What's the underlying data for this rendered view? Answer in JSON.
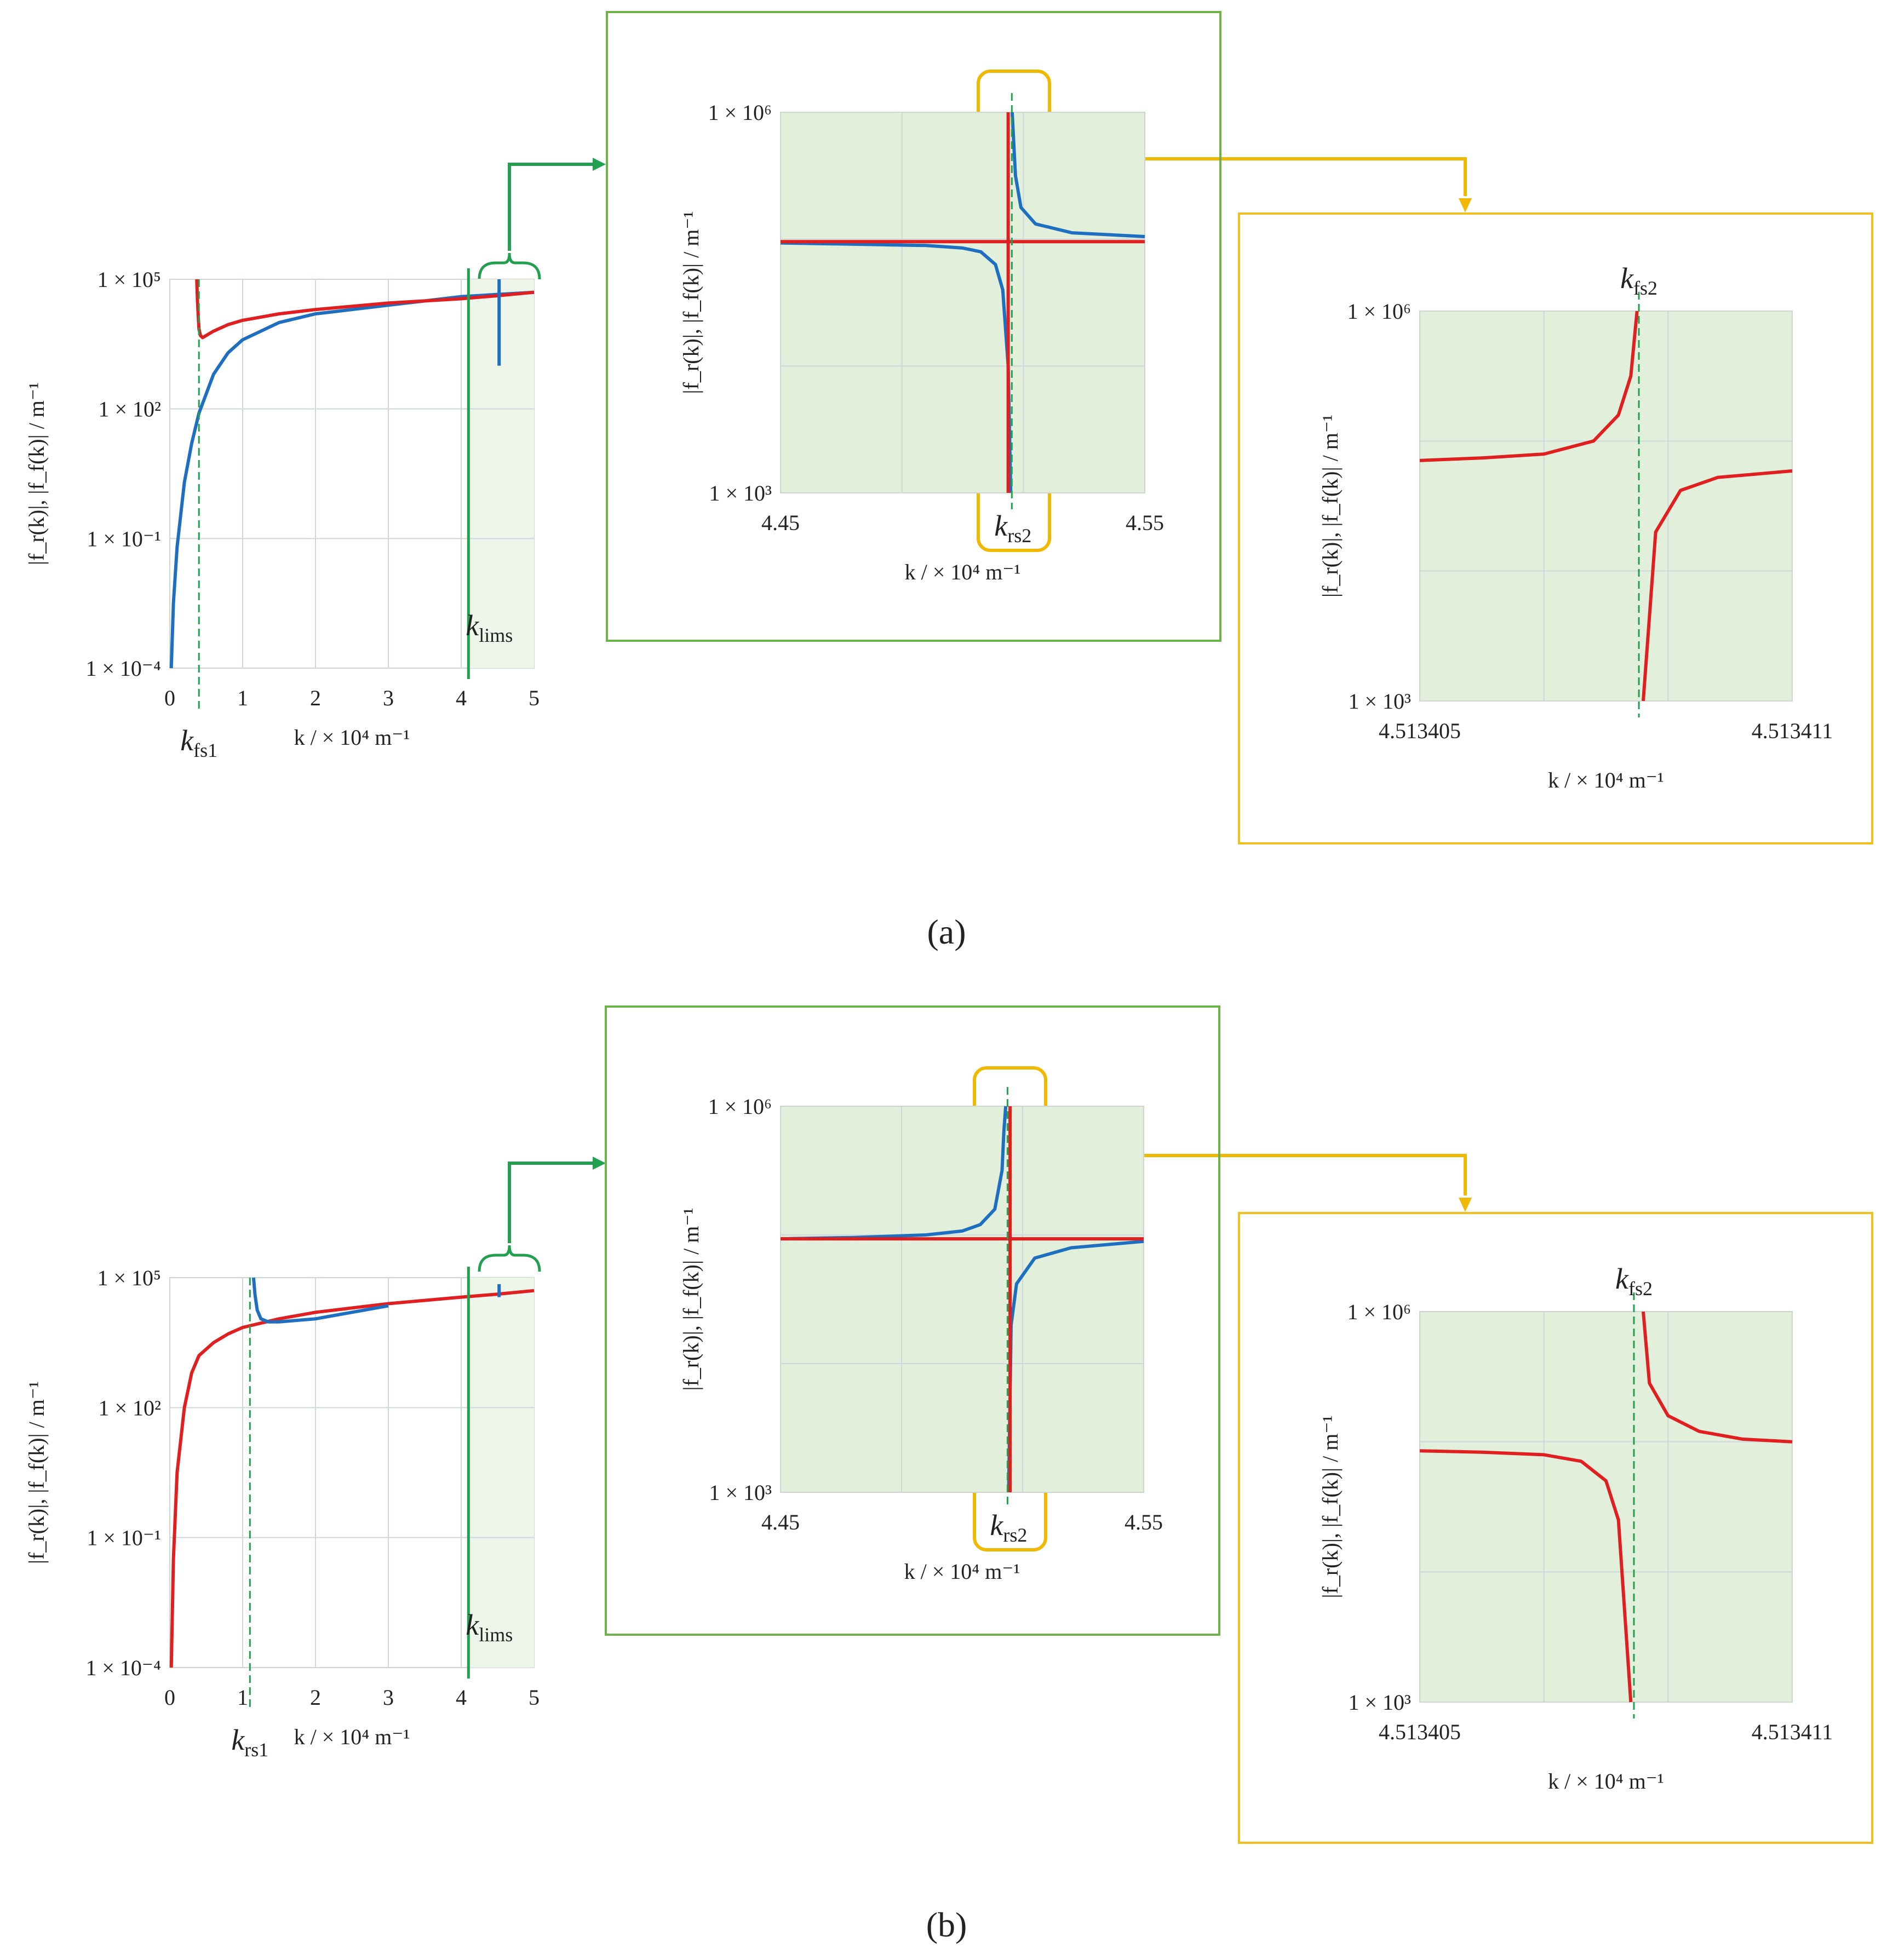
{
  "figure": {
    "panel_labels": [
      "(a)",
      "(b)"
    ],
    "note": ""
  },
  "chart_data": [
    {
      "id": "a-main",
      "panel": "a",
      "type": "line",
      "scale_y": "log",
      "xlim": [
        0,
        5
      ],
      "ylim_exp": [
        -4,
        5
      ],
      "xticks": [
        "0",
        "1",
        "2",
        "3",
        "4",
        "5"
      ],
      "yticks": [
        "1 × 10⁻⁴",
        "1 × 10⁻¹",
        "1 × 10²",
        "1 × 10⁵"
      ],
      "ylabel": "|f_r(k)|, |f_f(k)| / m⁻¹",
      "xlabel": "k / × 10⁴ m⁻¹",
      "series": [
        {
          "name": "f_r",
          "color": "#1f6fc1",
          "x": [
            0.02,
            0.05,
            0.1,
            0.2,
            0.3,
            0.4,
            0.6,
            0.8,
            1.0,
            1.5,
            2.0,
            3.0,
            4.0,
            4.5,
            5.0
          ],
          "log10y": [
            -4.0,
            -2.5,
            -1.2,
            0.3,
            1.2,
            1.9,
            2.8,
            3.3,
            3.6,
            4.0,
            4.2,
            4.4,
            4.6,
            4.65,
            4.7
          ]
        },
        {
          "name": "f_f",
          "color": "#e02020",
          "x": [
            0.37,
            0.38,
            0.4,
            0.42,
            0.45,
            0.5,
            0.6,
            0.8,
            1.0,
            1.5,
            2.0,
            3.0,
            4.0,
            4.5,
            5.0
          ],
          "log10y": [
            5.0,
            4.5,
            3.85,
            3.7,
            3.65,
            3.7,
            3.8,
            3.95,
            4.05,
            4.2,
            4.3,
            4.45,
            4.55,
            4.62,
            4.7
          ]
        },
        {
          "name": "f_r spike near k_rs2",
          "color": "#1f6fc1",
          "x": [
            4.52,
            4.52
          ],
          "log10y": [
            5.0,
            3.0
          ]
        }
      ],
      "markers": [
        {
          "label": "k_fs1",
          "x": 0.4,
          "style": "dashed",
          "color": "#22a050"
        },
        {
          "label": "k_lims",
          "x": 4.1,
          "style": "solid",
          "color": "#22a050"
        }
      ],
      "shade_from_x": 4.1
    },
    {
      "id": "a-zoom1",
      "panel": "a",
      "type": "line",
      "scale_y": "log",
      "xlim": [
        4.45,
        4.55
      ],
      "ylim_exp": [
        3,
        6
      ],
      "xticks": [
        "4.45",
        "4.55"
      ],
      "yticks": [
        "1 × 10³",
        "1 × 10⁶"
      ],
      "ylabel": "|f_r(k)|, |f_f(k)| / m⁻¹",
      "xlabel": "k / × 10⁴ m⁻¹",
      "singularity_x": 4.5134,
      "series": [
        {
          "name": "f_r",
          "color": "#1f6fc1",
          "x": [
            4.45,
            4.47,
            4.49,
            4.5,
            4.505,
            4.509,
            4.511,
            4.5125,
            4.5132
          ],
          "log10y": [
            4.97,
            4.96,
            4.95,
            4.93,
            4.9,
            4.8,
            4.6,
            4.0,
            3.0
          ]
        },
        {
          "name": "f_r (right branch)",
          "color": "#1f6fc1",
          "x": [
            4.5136,
            4.5145,
            4.516,
            4.52,
            4.53,
            4.55
          ],
          "log10y": [
            6.0,
            5.5,
            5.25,
            5.12,
            5.05,
            5.02
          ]
        },
        {
          "name": "f_f",
          "color": "#e02020",
          "x": [
            4.45,
            4.55
          ],
          "log10y": [
            4.98,
            4.98
          ]
        },
        {
          "name": "f_f (vertical)",
          "color": "#e02020",
          "x": [
            4.5125,
            4.5125
          ],
          "log10y": [
            3.0,
            6.0
          ]
        }
      ],
      "markers": [
        {
          "label": "k_rs2",
          "x": 4.5135,
          "style": "dashed",
          "color": "#22a050"
        }
      ]
    },
    {
      "id": "a-zoom2",
      "panel": "a",
      "type": "line",
      "scale_y": "log",
      "xlim": [
        4.513405,
        4.513411
      ],
      "ylim_exp": [
        3,
        6
      ],
      "xticks": [
        "4.513405",
        "4.513411"
      ],
      "yticks": [
        "1 × 10³",
        "1 × 10⁶"
      ],
      "ylabel": "|f_r(k)|, |f_f(k)| / m⁻¹",
      "xlabel": "k / × 10⁴ m⁻¹",
      "singularity_x": 4.51340855,
      "series": [
        {
          "name": "f_f (left branch)",
          "color": "#e02020",
          "x": [
            4.513405,
            4.513406,
            4.513407,
            4.513407,
            4.5134078,
            4.5134082,
            4.5134084,
            4.5134085
          ],
          "log10y": [
            4.85,
            4.87,
            4.9,
            4.9,
            5.0,
            5.2,
            5.5,
            6.0
          ]
        },
        {
          "name": "f_f (right branch)",
          "color": "#e02020",
          "x": [
            4.5134086,
            4.5134088,
            4.5134092,
            4.5134098,
            4.513411
          ],
          "log10y": [
            3.0,
            4.3,
            4.62,
            4.72,
            4.77
          ]
        }
      ],
      "markers": [
        {
          "label": "k_fs2",
          "x": 4.51340853,
          "style": "dashed",
          "color": "#22a050"
        }
      ]
    },
    {
      "id": "b-main",
      "panel": "b",
      "type": "line",
      "scale_y": "log",
      "xlim": [
        0,
        5
      ],
      "ylim_exp": [
        -4,
        5
      ],
      "xticks": [
        "0",
        "1",
        "2",
        "3",
        "4",
        "5"
      ],
      "yticks": [
        "1 × 10⁻⁴",
        "1 × 10⁻¹",
        "1 × 10²",
        "1 × 10⁵"
      ],
      "ylabel": "|f_r(k)|, |f_f(k)| / m⁻¹",
      "xlabel": "k / × 10⁴ m⁻¹",
      "series": [
        {
          "name": "f_f",
          "color": "#e02020",
          "x": [
            0.02,
            0.05,
            0.1,
            0.2,
            0.3,
            0.4,
            0.6,
            0.8,
            1.0,
            1.5,
            2.0,
            3.0,
            4.0,
            4.5,
            5.0
          ],
          "log10y": [
            -4.0,
            -1.5,
            0.5,
            2.0,
            2.8,
            3.2,
            3.5,
            3.7,
            3.85,
            4.05,
            4.2,
            4.4,
            4.55,
            4.62,
            4.7
          ]
        },
        {
          "name": "f_r",
          "color": "#1f6fc1",
          "x": [
            1.15,
            1.17,
            1.2,
            1.25,
            1.35,
            1.5,
            2.0,
            2.5,
            3.0
          ],
          "log10y": [
            5.0,
            4.6,
            4.25,
            4.05,
            3.98,
            3.98,
            4.05,
            4.2,
            4.35
          ]
        },
        {
          "name": "f_r spike near k_rs2",
          "color": "#1f6fc1",
          "x": [
            4.52,
            4.52
          ],
          "log10y": [
            4.85,
            4.55
          ]
        }
      ],
      "markers": [
        {
          "label": "k_rs1",
          "x": 1.1,
          "style": "dashed",
          "color": "#22a050"
        },
        {
          "label": "k_lims",
          "x": 4.1,
          "style": "solid",
          "color": "#22a050"
        }
      ],
      "shade_from_x": 4.1
    },
    {
      "id": "b-zoom1",
      "panel": "b",
      "type": "line",
      "scale_y": "log",
      "xlim": [
        4.45,
        4.55
      ],
      "ylim_exp": [
        3,
        6
      ],
      "xticks": [
        "4.45",
        "4.55"
      ],
      "yticks": [
        "1 × 10³",
        "1 × 10⁶"
      ],
      "ylabel": "|f_r(k)|, |f_f(k)| / m⁻¹",
      "xlabel": "k / × 10⁴ m⁻¹",
      "singularity_x": 4.5134,
      "series": [
        {
          "name": "f_r",
          "color": "#1f6fc1",
          "x": [
            4.45,
            4.47,
            4.49,
            4.5,
            4.505,
            4.509,
            4.511,
            4.5115,
            4.512
          ],
          "log10y": [
            4.97,
            4.98,
            5.0,
            5.03,
            5.08,
            5.2,
            5.5,
            5.8,
            6.0
          ]
        },
        {
          "name": "f_r (right branch)",
          "color": "#1f6fc1",
          "x": [
            4.5128,
            4.5135,
            4.515,
            4.52,
            4.53,
            4.55
          ],
          "log10y": [
            3.0,
            4.3,
            4.62,
            4.82,
            4.9,
            4.95
          ]
        },
        {
          "name": "f_f",
          "color": "#e02020",
          "x": [
            4.45,
            4.55
          ],
          "log10y": [
            4.97,
            4.97
          ]
        },
        {
          "name": "f_f (vertical)",
          "color": "#e02020",
          "x": [
            4.5132,
            4.5132
          ],
          "log10y": [
            3.0,
            6.0
          ]
        }
      ],
      "markers": [
        {
          "label": "k_rs2",
          "x": 4.5125,
          "style": "dashed",
          "color": "#22a050"
        }
      ]
    },
    {
      "id": "b-zoom2",
      "panel": "b",
      "type": "line",
      "scale_y": "log",
      "xlim": [
        4.513405,
        4.513411
      ],
      "ylim_exp": [
        3,
        6
      ],
      "xticks": [
        "4.513405",
        "4.513411"
      ],
      "yticks": [
        "1 × 10³",
        "1 × 10⁶"
      ],
      "ylabel": "|f_r(k)|, |f_f(k)| / m⁻¹",
      "xlabel": "k / × 10⁴ m⁻¹",
      "singularity_x": 4.5134085,
      "series": [
        {
          "name": "f_f (left branch)",
          "color": "#e02020",
          "x": [
            4.513405,
            4.513406,
            4.513407,
            4.5134076,
            4.513408,
            4.5134082,
            4.5134084
          ],
          "log10y": [
            4.93,
            4.92,
            4.9,
            4.85,
            4.7,
            4.4,
            3.0
          ]
        },
        {
          "name": "f_f (right branch)",
          "color": "#e02020",
          "x": [
            4.5134086,
            4.5134087,
            4.513409,
            4.5134095,
            4.5134102,
            4.513411
          ],
          "log10y": [
            6.0,
            5.45,
            5.2,
            5.08,
            5.02,
            5.0
          ]
        }
      ],
      "markers": [
        {
          "label": "k_fs2",
          "x": 4.51340845,
          "style": "dashed",
          "color": "#22a050"
        }
      ]
    }
  ]
}
